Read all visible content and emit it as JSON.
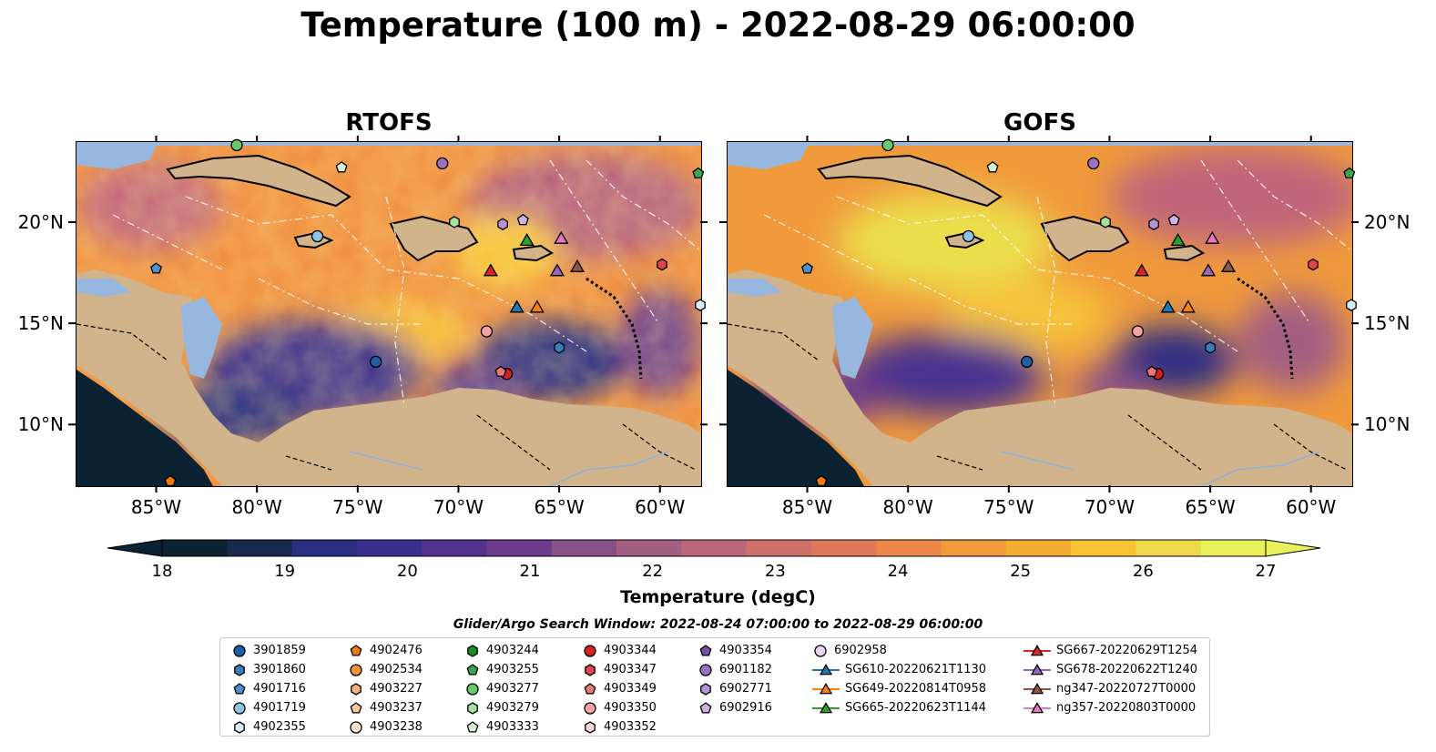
{
  "title": "Temperature (100 m) - 2022-08-29 06:00:00",
  "panels": [
    {
      "title": "RTOFS"
    },
    {
      "title": "GOFS"
    }
  ],
  "axes": {
    "lon_ticks": [
      "85°W",
      "80°W",
      "75°W",
      "70°W",
      "65°W",
      "60°W"
    ],
    "lat_ticks": [
      "20°N",
      "15°N",
      "10°N"
    ],
    "lon_range": [
      -89,
      -58
    ],
    "lat_range": [
      7,
      24
    ]
  },
  "colorbar": {
    "label": "Temperature (degC)",
    "ticks": [
      "18",
      "19",
      "20",
      "21",
      "22",
      "23",
      "24",
      "25",
      "26",
      "27"
    ],
    "range": [
      18,
      27
    ],
    "extend": "both",
    "colors": [
      "#0b2232",
      "#18284f",
      "#2a2f82",
      "#3a2f8e",
      "#55318f",
      "#6d3a8c",
      "#875089",
      "#a35f82",
      "#bb6779",
      "#d0706a",
      "#e0785a",
      "#ec8649",
      "#f39a3c",
      "#f6ac33",
      "#f7c233",
      "#efd84a",
      "#e8f05a"
    ]
  },
  "colors": {
    "land": "#d2b48c",
    "shelf": "#97b7de",
    "deep_cool": "#0b2232"
  },
  "search_window": "Glider/Argo Search Window: 2022-08-24 07:00:00 to 2022-08-29 06:00:00",
  "legend": [
    {
      "label": "3901859",
      "marker": "circle",
      "color": "#1f5fa6"
    },
    {
      "label": "3901860",
      "marker": "hexagon",
      "color": "#3b7dbd"
    },
    {
      "label": "4901716",
      "marker": "pentagon",
      "color": "#4f8fd0"
    },
    {
      "label": "4901719",
      "marker": "circle",
      "color": "#8fc4e8"
    },
    {
      "label": "4902355",
      "marker": "hexagon",
      "color": "#d6ecf8"
    },
    {
      "label": "4902476",
      "marker": "pentagon",
      "color": "#f07b0a"
    },
    {
      "label": "4902534",
      "marker": "circle",
      "color": "#f5923a"
    },
    {
      "label": "4903227",
      "marker": "hexagon",
      "color": "#f7b27a"
    },
    {
      "label": "4903237",
      "marker": "pentagon",
      "color": "#f9c99c"
    },
    {
      "label": "4903238",
      "marker": "circle",
      "color": "#fde4cc"
    },
    {
      "label": "4903244",
      "marker": "hexagon",
      "color": "#1a8a2a"
    },
    {
      "label": "4903255",
      "marker": "pentagon",
      "color": "#3aa84a"
    },
    {
      "label": "4903277",
      "marker": "circle",
      "color": "#6cc86c"
    },
    {
      "label": "4903279",
      "marker": "hexagon",
      "color": "#a6dfa0"
    },
    {
      "label": "4903333",
      "marker": "pentagon",
      "color": "#d6f2cf"
    },
    {
      "label": "4903344",
      "marker": "circle",
      "color": "#d42020"
    },
    {
      "label": "4903347",
      "marker": "hexagon",
      "color": "#e04848"
    },
    {
      "label": "4903349",
      "marker": "pentagon",
      "color": "#ea7878"
    },
    {
      "label": "4903350",
      "marker": "circle",
      "color": "#f4a3a3"
    },
    {
      "label": "4903352",
      "marker": "hexagon",
      "color": "#fcd2d2"
    },
    {
      "label": "4903354",
      "marker": "pentagon",
      "color": "#7a4ea8"
    },
    {
      "label": "6901182",
      "marker": "circle",
      "color": "#9a72c0"
    },
    {
      "label": "6902771",
      "marker": "hexagon",
      "color": "#b493d4"
    },
    {
      "label": "6902916",
      "marker": "pentagon",
      "color": "#ccb3e6"
    },
    {
      "label": "6902958",
      "marker": "circle",
      "color": "#e6d8f4"
    },
    {
      "label": "SG610-20220621T1130",
      "marker": "triangle",
      "color": "#1f77b4"
    },
    {
      "label": "SG649-20220814T0958",
      "marker": "triangle",
      "color": "#ff7f0e"
    },
    {
      "label": "SG665-20220623T1144",
      "marker": "triangle",
      "color": "#2ca02c"
    },
    {
      "label": "SG667-20220629T1254",
      "marker": "triangle",
      "color": "#d62728"
    },
    {
      "label": "SG678-20220622T1240",
      "marker": "triangle",
      "color": "#9467bd"
    },
    {
      "label": "ng347-20220727T0000",
      "marker": "triangle",
      "color": "#8c564b"
    },
    {
      "label": "ng357-20220803T0000",
      "marker": "triangle",
      "color": "#e377c2"
    }
  ],
  "stations": [
    {
      "id": "3901859",
      "lon": -74.1,
      "lat": 13.1
    },
    {
      "id": "3901860",
      "lon": -65.0,
      "lat": 13.8
    },
    {
      "id": "4901716",
      "lon": -85.0,
      "lat": 17.7
    },
    {
      "id": "4901719",
      "lon": -77.0,
      "lat": 19.3
    },
    {
      "id": "4902355",
      "lon": -58.0,
      "lat": 15.9
    },
    {
      "id": "4902476",
      "lon": -84.3,
      "lat": 7.2
    },
    {
      "id": "4903255",
      "lon": -58.1,
      "lat": 22.4
    },
    {
      "id": "4903277",
      "lon": -81.0,
      "lat": 23.8
    },
    {
      "id": "4903279",
      "lon": -70.2,
      "lat": 20.0
    },
    {
      "id": "4903333",
      "lon": -75.8,
      "lat": 22.7
    },
    {
      "id": "4903344",
      "lon": -67.6,
      "lat": 12.5
    },
    {
      "id": "4903347",
      "lon": -59.9,
      "lat": 17.9
    },
    {
      "id": "4903349",
      "lon": -67.9,
      "lat": 12.6
    },
    {
      "id": "4903350",
      "lon": -68.6,
      "lat": 14.6
    },
    {
      "id": "6901182",
      "lon": -70.8,
      "lat": 22.9
    },
    {
      "id": "6902771",
      "lon": -67.8,
      "lat": 19.9
    },
    {
      "id": "6902916",
      "lon": -66.8,
      "lat": 20.1
    }
  ],
  "gliders": [
    {
      "id": "SG610-20220621T1130",
      "lon": -67.1,
      "lat": 15.8
    },
    {
      "id": "SG649-20220814T0958",
      "lon": -66.1,
      "lat": 15.8
    },
    {
      "id": "SG665-20220623T1144",
      "lon": -66.6,
      "lat": 19.1
    },
    {
      "id": "SG667-20220629T1254",
      "lon": -68.4,
      "lat": 17.6
    },
    {
      "id": "SG678-20220622T1240",
      "lon": -65.1,
      "lat": 17.6
    },
    {
      "id": "ng347-20220727T0000",
      "lon": -64.1,
      "lat": 17.8
    },
    {
      "id": "ng357-20220803T0000",
      "lon": -64.9,
      "lat": 19.2
    }
  ]
}
